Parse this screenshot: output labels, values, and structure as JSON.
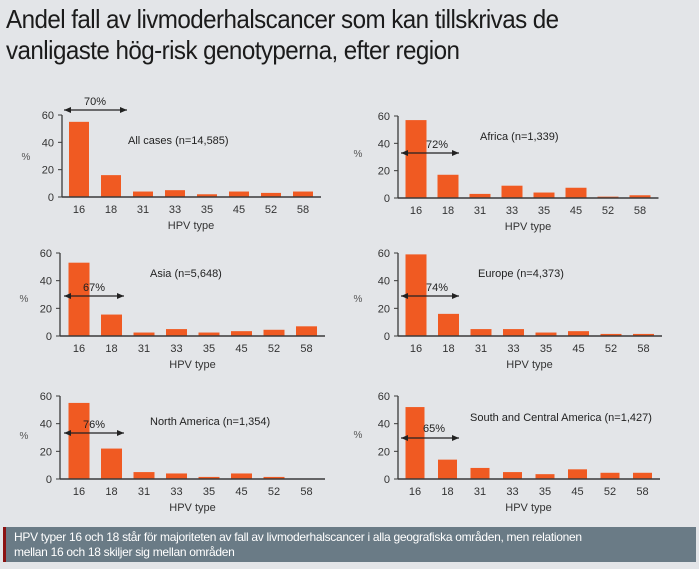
{
  "title": {
    "line1": "Andel fall av livmoderhalscancer som kan tillskrivas de",
    "line2": "vanligaste hög-risk genotyperna, efter region"
  },
  "footer": {
    "line1": "HPV typer 16 och 18 står för majoriteten av fall av livmoderhalscancer i alla geografiska områden, men relationen",
    "line2": "mellan 16 och 18 skiljer sig mellan områden"
  },
  "colors": {
    "bar": "#f05a22",
    "axis": "#3a3a3a",
    "background": "#e3e5e8",
    "footer_bg": "#6a7b86",
    "footer_accent": "#8b1212"
  },
  "chart_data": [
    {
      "type": "bar",
      "title": "All cases (n=14,585)",
      "xlabel": "HPV type",
      "ylabel": "%",
      "categories": [
        "16",
        "18",
        "31",
        "33",
        "35",
        "45",
        "52",
        "58"
      ],
      "values": [
        55,
        16,
        4,
        5,
        2,
        4,
        3,
        4
      ],
      "ylim": [
        0,
        60
      ],
      "yticks": [
        "0",
        "20",
        "40",
        "60"
      ],
      "annotation": "70%",
      "grid": false
    },
    {
      "type": "bar",
      "title": "Africa (n=1,339)",
      "xlabel": "HPV type",
      "ylabel": "%",
      "categories": [
        "16",
        "18",
        "31",
        "33",
        "35",
        "45",
        "52",
        "58"
      ],
      "values": [
        57,
        17,
        3,
        9,
        4,
        7.5,
        1,
        2
      ],
      "ylim": [
        0,
        60
      ],
      "yticks": [
        "0",
        "20",
        "40",
        "60"
      ],
      "annotation": "72%",
      "grid": false
    },
    {
      "type": "bar",
      "title": "Asia (n=5,648)",
      "xlabel": "HPV type",
      "ylabel": "%",
      "categories": [
        "16",
        "18",
        "31",
        "33",
        "35",
        "45",
        "52",
        "58"
      ],
      "values": [
        53,
        15.5,
        2.5,
        5,
        2.5,
        3.5,
        4.5,
        7
      ],
      "ylim": [
        0,
        60
      ],
      "yticks": [
        "0",
        "20",
        "40",
        "60"
      ],
      "annotation": "67%",
      "grid": false
    },
    {
      "type": "bar",
      "title": "Europe (n=4,373)",
      "xlabel": "HPV type",
      "ylabel": "%",
      "categories": [
        "16",
        "18",
        "31",
        "33",
        "35",
        "45",
        "52",
        "58"
      ],
      "values": [
        59,
        16,
        5,
        5,
        2.5,
        3.5,
        1.5,
        1.5
      ],
      "ylim": [
        0,
        60
      ],
      "yticks": [
        "0",
        "20",
        "40",
        "60"
      ],
      "annotation": "74%",
      "grid": false
    },
    {
      "type": "bar",
      "title": "North America (n=1,354)",
      "xlabel": "HPV type",
      "ylabel": "%",
      "categories": [
        "16",
        "18",
        "31",
        "33",
        "35",
        "45",
        "52",
        "58"
      ],
      "values": [
        55,
        22,
        5,
        4,
        1.5,
        4,
        1.5,
        0
      ],
      "ylim": [
        0,
        60
      ],
      "yticks": [
        "0",
        "20",
        "40",
        "60"
      ],
      "annotation": "76%",
      "grid": false
    },
    {
      "type": "bar",
      "title": "South and Central America (n=1,427)",
      "xlabel": "HPV type",
      "ylabel": "%",
      "categories": [
        "16",
        "18",
        "31",
        "33",
        "35",
        "45",
        "52",
        "58"
      ],
      "values": [
        52,
        14,
        8,
        5,
        3.5,
        7,
        4.5,
        4.5
      ],
      "ylim": [
        0,
        60
      ],
      "yticks": [
        "0",
        "20",
        "40",
        "60"
      ],
      "annotation": "65%",
      "grid": false
    }
  ]
}
